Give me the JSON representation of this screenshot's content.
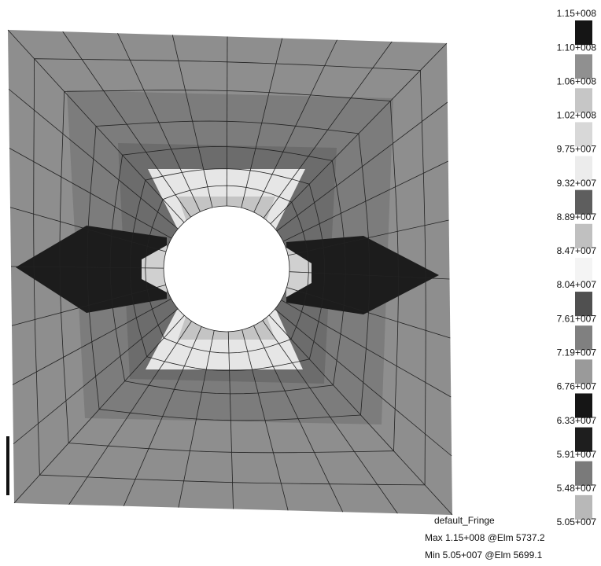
{
  "legend": {
    "labels": [
      "1.15+008",
      "1.10+008",
      "1.06+008",
      "1.02+008",
      "9.75+007",
      "9.32+007",
      "8.89+007",
      "8.47+007",
      "8.04+007",
      "7.61+007",
      "7.19+007",
      "6.76+007",
      "6.33+007",
      "5.91+007",
      "5.48+007",
      "5.05+007"
    ]
  },
  "footer": {
    "title": "default_Fringe",
    "max": "Max 1.15+008 @Elm 5737.2",
    "min": "Min 5.05+007 @Elm 5699.1"
  }
}
